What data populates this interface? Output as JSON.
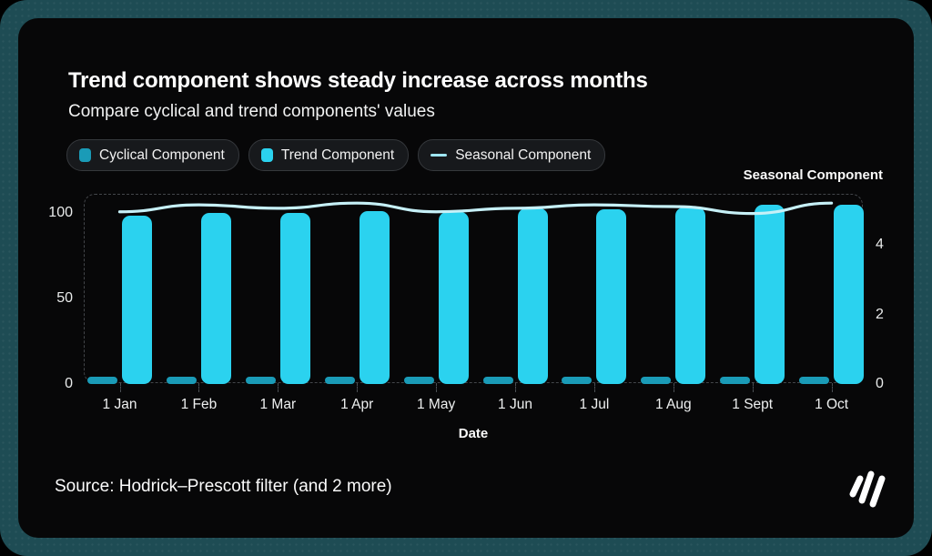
{
  "card": {
    "title": "Trend component shows steady increase across months",
    "subtitle": "Compare cyclical and trend components' values",
    "source": "Source: Hodrick–Prescott filter (and 2 more)"
  },
  "theme": {
    "frame_background": "#1e4c54",
    "card_background": "#070708",
    "cyclical_color": "#1a9bb7",
    "trend_color": "#2bd2ef",
    "seasonal_color": "#c6f0f7",
    "grid_dash_color": "#43464a",
    "text_color": "#ffffff"
  },
  "logo": {
    "icon": "graphy-triple-slash-logo"
  },
  "chart_data": {
    "type": "combo",
    "categories": [
      "1 Jan",
      "1 Feb",
      "1 Mar",
      "1 Apr",
      "1 May",
      "1 Jun",
      "1 Jul",
      "1 Aug",
      "1 Sept",
      "1 Oct"
    ],
    "series": [
      {
        "name": "Cyclical Component",
        "type": "bar",
        "axis": "left",
        "color": "#1a9bb7",
        "values": [
          2,
          2,
          2,
          2,
          2,
          2,
          2,
          2,
          2,
          2
        ]
      },
      {
        "name": "Trend Component",
        "type": "bar",
        "axis": "left",
        "color": "#2bd2ef",
        "values": [
          98.5,
          100,
          100,
          101,
          100.5,
          102.5,
          102,
          103,
          104.5,
          105
        ]
      },
      {
        "name": "Seasonal Component",
        "type": "line",
        "axis": "right",
        "color": "#c6f0f7",
        "values": [
          4.95,
          5.15,
          5.05,
          5.2,
          4.95,
          5.05,
          5.15,
          5.1,
          4.9,
          5.2
        ]
      }
    ],
    "xlabel": "Date",
    "right_axis_title": "Seasonal Component",
    "left_axis_ticks": [
      0,
      50,
      100
    ],
    "right_axis_ticks": [
      0,
      2,
      4
    ],
    "left_axis_max": 110.6,
    "right_axis_max": 5.44,
    "legend_position": "top",
    "grid": "dashed-frame-only"
  }
}
